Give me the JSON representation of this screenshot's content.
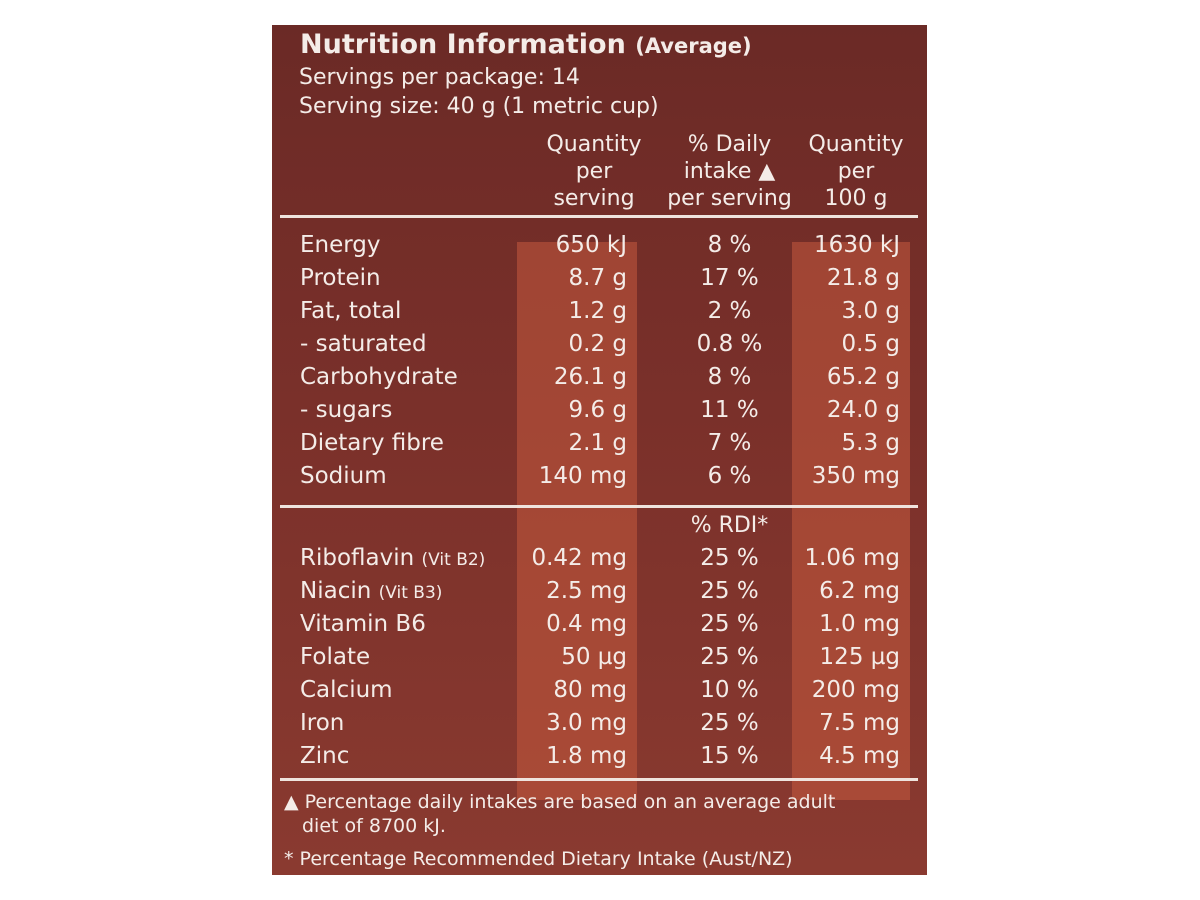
{
  "title": {
    "main": "Nutrition Information",
    "sub": "(Average)"
  },
  "servings_per_package": "Servings per package: 14",
  "serving_size": "Serving size: 40 g (1 metric cup)",
  "headers": {
    "col1": [
      "Quantity",
      "per",
      "serving"
    ],
    "col2": [
      "% Daily",
      "intake ▲",
      "per serving"
    ],
    "col3": [
      "Quantity",
      "per",
      "100 g"
    ]
  },
  "nutrients": [
    {
      "name": "Energy",
      "per_serving": "650 kJ",
      "daily": "8 %",
      "per_100g": "1630 kJ"
    },
    {
      "name": "Protein",
      "per_serving": "8.7 g",
      "daily": "17 %",
      "per_100g": "21.8 g"
    },
    {
      "name": "Fat, total",
      "per_serving": "1.2 g",
      "daily": "2 %",
      "per_100g": "3.0 g"
    },
    {
      "name": "- saturated",
      "per_serving": "0.2 g",
      "daily": "0.8 %",
      "per_100g": "0.5 g"
    },
    {
      "name": "Carbohydrate",
      "per_serving": "26.1 g",
      "daily": "8 %",
      "per_100g": "65.2 g"
    },
    {
      "name": "- sugars",
      "per_serving": "9.6 g",
      "daily": "11 %",
      "per_100g": "24.0 g"
    },
    {
      "name": "Dietary fibre",
      "per_serving": "2.1 g",
      "daily": "7 %",
      "per_100g": "5.3 g"
    },
    {
      "name": "Sodium",
      "per_serving": "140 mg",
      "daily": "6 %",
      "per_100g": "350 mg"
    }
  ],
  "rdi_header": "% RDI*",
  "vitamins": [
    {
      "name": "Riboflavin",
      "note": "(Vit B2)",
      "per_serving": "0.42 mg",
      "rdi": "25 %",
      "per_100g": "1.06 mg"
    },
    {
      "name": "Niacin",
      "note": "(Vit B3)",
      "per_serving": "2.5 mg",
      "rdi": "25 %",
      "per_100g": "6.2 mg"
    },
    {
      "name": "Vitamin B6",
      "note": "",
      "per_serving": "0.4 mg",
      "rdi": "25 %",
      "per_100g": "1.0 mg"
    },
    {
      "name": "Folate",
      "note": "",
      "per_serving": "50 µg",
      "rdi": "25 %",
      "per_100g": "125 µg"
    },
    {
      "name": "Calcium",
      "note": "",
      "per_serving": "80 mg",
      "rdi": "10 %",
      "per_100g": "200 mg"
    },
    {
      "name": "Iron",
      "note": "",
      "per_serving": "3.0 mg",
      "rdi": "25 %",
      "per_100g": "7.5 mg"
    },
    {
      "name": "Zinc",
      "note": "",
      "per_serving": "1.8 mg",
      "rdi": "15 %",
      "per_100g": "4.5 mg"
    }
  ],
  "footnotes": {
    "daily_line1": "▲ Percentage daily intakes are based on an average adult",
    "daily_line2": "diet of 8700 kJ.",
    "rdi": "* Percentage Recommended Dietary Intake (Aust/NZ)"
  },
  "colors": {
    "panel": "#7a302a",
    "shade": "#b0513c",
    "text": "#f4ece8"
  }
}
